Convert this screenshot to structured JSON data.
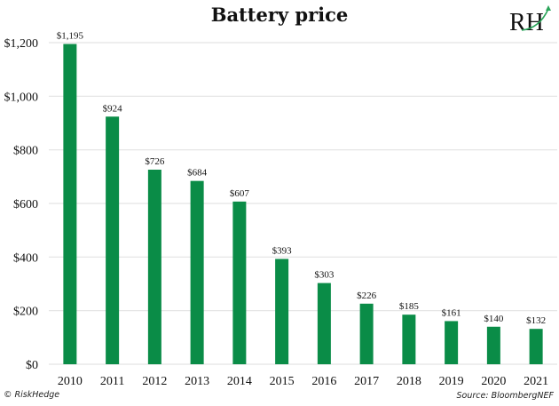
{
  "chart_data": {
    "type": "bar",
    "title": "Battery price",
    "xlabel": "",
    "ylabel": "",
    "categories": [
      "2010",
      "2011",
      "2012",
      "2013",
      "2014",
      "2015",
      "2016",
      "2017",
      "2018",
      "2019",
      "2020",
      "2021"
    ],
    "values": [
      1195,
      924,
      726,
      684,
      607,
      393,
      303,
      226,
      185,
      161,
      140,
      132
    ],
    "data_labels": [
      "$1,195",
      "$924",
      "$726",
      "$684",
      "$607",
      "$393",
      "$303",
      "$226",
      "$185",
      "$161",
      "$140",
      "$132"
    ],
    "ylim": [
      0,
      1200
    ],
    "yticks": [
      0,
      200,
      400,
      600,
      800,
      1000,
      1200
    ],
    "ytick_labels": [
      "$0",
      "$200",
      "$400",
      "$600",
      "$800",
      "$1,000",
      "$1,200"
    ],
    "grid": true,
    "legend": "none",
    "bar_color": "#0a8c47",
    "grid_color": "#e3e3e3"
  },
  "logo": {
    "text": "RH",
    "accent_color": "#2aa55a"
  },
  "footer": {
    "copyright": "© RiskHedge",
    "source": "Source: BloombergNEF"
  }
}
